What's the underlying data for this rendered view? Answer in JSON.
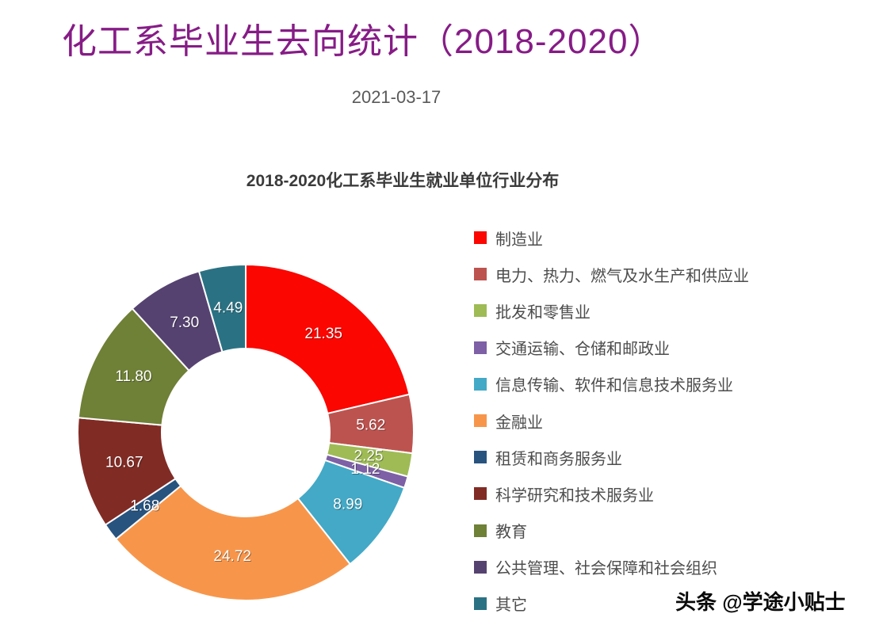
{
  "page": {
    "title": "化工系毕业生去向统计（2018-2020）",
    "title_color": "#861C86",
    "date": "2021-03-17",
    "watermark": "头条 @学途小贴士"
  },
  "chart_data": {
    "type": "pie",
    "subtype": "donut",
    "title": "2018-2020化工系毕业生就业单位行业分布",
    "unit": "percent",
    "inner_radius_ratio": 0.5,
    "start_angle": "top",
    "direction": "clockwise",
    "legend_position": "right",
    "slice_border_color": "#ffffff",
    "label_color": "#ffffff",
    "series": [
      {
        "label": "制造业",
        "value": 21.35,
        "color": "#FB0600"
      },
      {
        "label": "电力、热力、燃气及水生产和供应业",
        "value": 5.62,
        "color": "#BD534F"
      },
      {
        "label": "批发和零售业",
        "value": 2.25,
        "color": "#9EBB55"
      },
      {
        "label": "交通运输、仓储和邮政业",
        "value": 1.12,
        "color": "#7D60A5"
      },
      {
        "label": "信息传输、软件和信息技术服务业",
        "value": 8.99,
        "color": "#43A9C6"
      },
      {
        "label": "金融业",
        "value": 24.72,
        "color": "#F7964B"
      },
      {
        "label": "租赁和商务服务业",
        "value": 1.68,
        "color": "#28537F"
      },
      {
        "label": "科学研究和技术服务业",
        "value": 10.67,
        "color": "#812B25"
      },
      {
        "label": "教育",
        "value": 11.8,
        "color": "#6F8037"
      },
      {
        "label": "公共管理、社会保障和社会组织",
        "value": 7.3,
        "color": "#564270"
      },
      {
        "label": "其它",
        "value": 4.49,
        "color": "#2A7283"
      }
    ]
  }
}
